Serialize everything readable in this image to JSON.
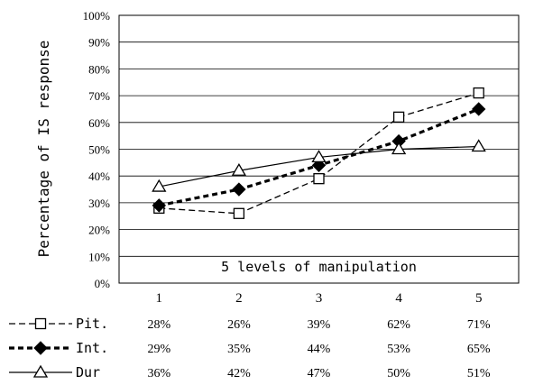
{
  "chart_data": {
    "type": "line",
    "ylabel": "Percentage of IS response",
    "annotation": "5 levels of manipulation",
    "ylim": [
      0,
      100
    ],
    "y_tick_labels": [
      "0%",
      "10%",
      "20%",
      "30%",
      "40%",
      "50%",
      "60%",
      "70%",
      "80%",
      "90%",
      "100%"
    ],
    "categories": [
      "1",
      "2",
      "3",
      "4",
      "5"
    ],
    "grid": true,
    "legend_placement": "data-table-below",
    "series": [
      {
        "name": "Pit.",
        "values": [
          28,
          26,
          39,
          62,
          71
        ],
        "labels": [
          "28%",
          "26%",
          "39%",
          "62%",
          "71%"
        ],
        "marker": "open-square",
        "line": "dashed",
        "color": "#000000"
      },
      {
        "name": "Int.",
        "values": [
          29,
          35,
          44,
          53,
          65
        ],
        "labels": [
          "29%",
          "35%",
          "44%",
          "53%",
          "65%"
        ],
        "marker": "filled-diamond",
        "line": "bold-dashed",
        "color": "#000000"
      },
      {
        "name": "Dur",
        "values": [
          36,
          42,
          47,
          50,
          51
        ],
        "labels": [
          "36%",
          "42%",
          "47%",
          "50%",
          "51%"
        ],
        "marker": "open-triangle",
        "line": "solid",
        "color": "#000000"
      }
    ]
  }
}
